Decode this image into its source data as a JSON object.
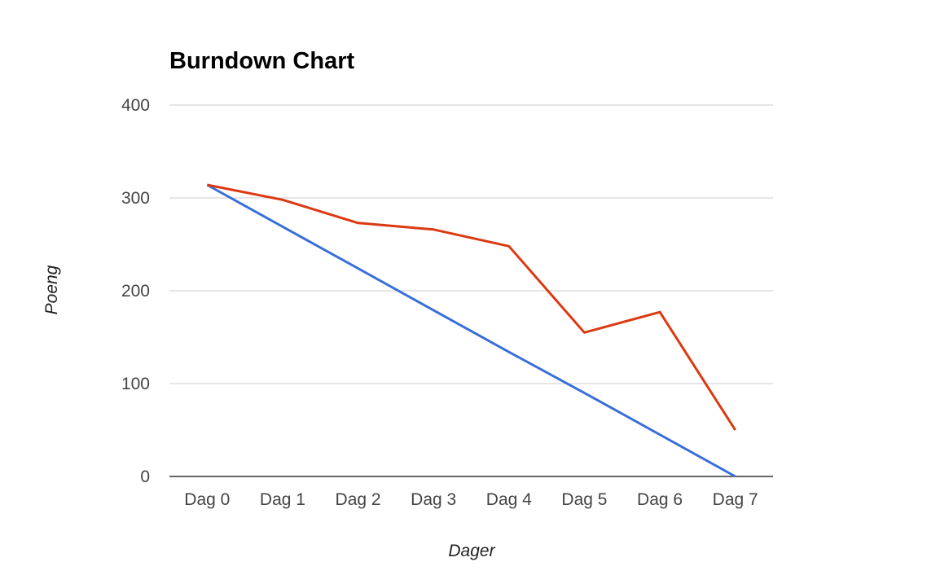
{
  "chart_data": {
    "type": "line",
    "title": "Burndown Chart",
    "xlabel": "Dager",
    "ylabel": "Poeng",
    "categories": [
      "Dag 0",
      "Dag 1",
      "Dag 2",
      "Dag 3",
      "Dag 4",
      "Dag 5",
      "Dag 6",
      "Dag 7"
    ],
    "series": [
      {
        "values": [
          314,
          269,
          224,
          179,
          134,
          90,
          45,
          0
        ],
        "color": "#3a6fd8"
      },
      {
        "values": [
          314,
          298,
          273,
          266,
          248,
          155,
          177,
          50
        ],
        "color": "#dc3912"
      }
    ],
    "ylim": [
      0,
      400
    ],
    "yticks": [
      0,
      100,
      200,
      300,
      400
    ],
    "grid": true,
    "gridline_color": "#cccccc",
    "baseline_color": "#333333",
    "legend": "none"
  }
}
